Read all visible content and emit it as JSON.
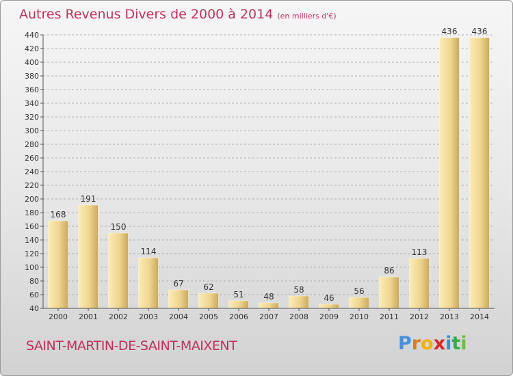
{
  "chart_data": {
    "type": "bar",
    "title": "Autres Revenus Divers de 2000 à 2014",
    "unit_note": "(en milliers d'€)",
    "categories": [
      "2000",
      "2001",
      "2002",
      "2003",
      "2004",
      "2005",
      "2006",
      "2007",
      "2008",
      "2009",
      "2010",
      "2011",
      "2012",
      "2013",
      "2014"
    ],
    "values": [
      168,
      191,
      150,
      114,
      67,
      62,
      51,
      48,
      58,
      46,
      56,
      86,
      113,
      436,
      436
    ],
    "value_labels": [
      "168",
      "191",
      "150",
      "114",
      "67",
      "62",
      "51",
      "48",
      "58",
      "46",
      "56",
      "86",
      "113",
      "436",
      "436"
    ],
    "ylim": [
      40,
      440
    ],
    "yticks": [
      "40",
      "60",
      "80",
      "100",
      "120",
      "140",
      "160",
      "180",
      "200",
      "220",
      "240",
      "260",
      "280",
      "300",
      "320",
      "340",
      "360",
      "380",
      "400",
      "420",
      "440"
    ],
    "xlabel": "",
    "ylabel": "",
    "grid": true,
    "legend": "none",
    "colors": {
      "bar_light": "#f8e3a0",
      "bar_dark": "#c9a95e",
      "title": "#c0305a",
      "grid": "#9a9a9a",
      "axis_text": "#333333"
    }
  },
  "footer": {
    "commune": "SAINT-MARTIN-DE-SAINT-MAIXENT",
    "brand_letters": [
      "P",
      "r",
      "o",
      "x",
      "i",
      "t",
      "i"
    ],
    "brand_colors": [
      "#4a90d9",
      "#e07a20",
      "#f2b100",
      "#d6282b",
      "#3a8fd6",
      "#3aa84a",
      "#6abf3a"
    ]
  }
}
